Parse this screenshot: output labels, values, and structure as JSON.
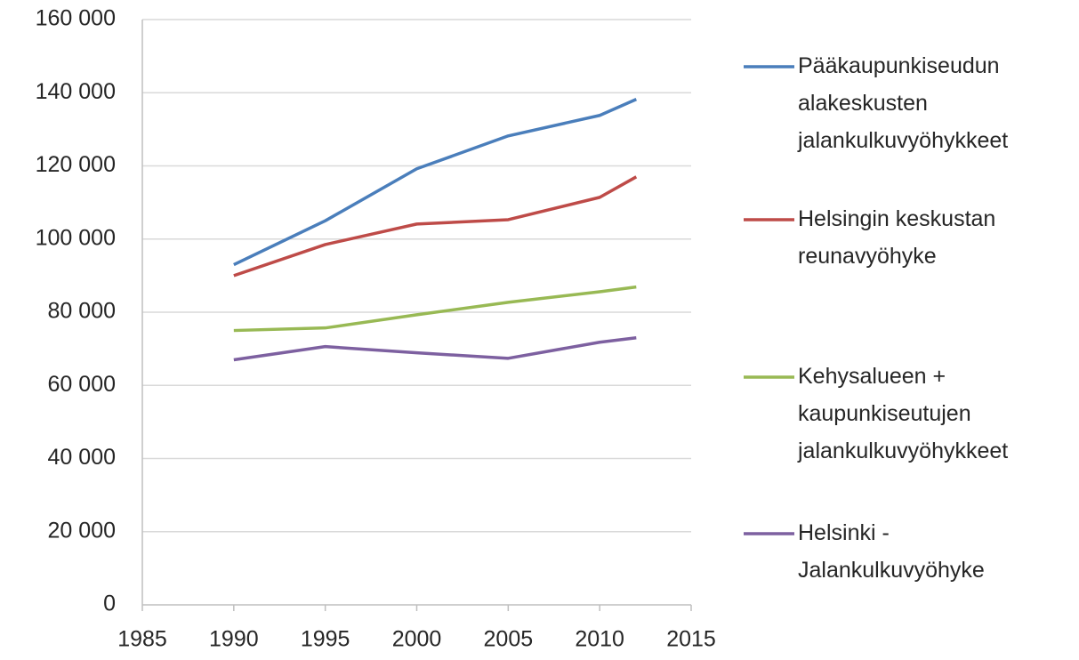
{
  "chart_data": {
    "type": "line",
    "x": [
      1990,
      1995,
      2000,
      2005,
      2010,
      2012
    ],
    "series": [
      {
        "name": "Pääkaupunkiseudun alakeskusten jalankulkuvyöhykkeet",
        "color": "#4a7ebb",
        "values": [
          93000,
          105000,
          119200,
          128200,
          133800,
          138200
        ]
      },
      {
        "name": "Helsingin keskustan reunavyöhyke",
        "color": "#be4b48",
        "values": [
          90000,
          98500,
          104100,
          105300,
          111400,
          117000
        ]
      },
      {
        "name": "Kehysalueen + kaupunkiseutujen jalankulkuvyöhykkeet",
        "color": "#98b954",
        "values": [
          75000,
          75700,
          79300,
          82700,
          85600,
          86900
        ]
      },
      {
        "name": "Helsinki - Jalankulkuvyöhyke",
        "color": "#7d60a0",
        "values": [
          67000,
          70600,
          68900,
          67400,
          71800,
          73000
        ]
      }
    ],
    "xlim": [
      1985,
      2015
    ],
    "xticks": [
      1985,
      1990,
      1995,
      2000,
      2005,
      2010,
      2015
    ],
    "ylim": [
      0,
      160000
    ],
    "yticks": [
      0,
      {
        "value": 20000,
        "label": "20 000"
      },
      {
        "value": 40000,
        "label": "40 000"
      },
      {
        "value": 60000,
        "label": "60 000"
      },
      {
        "value": 80000,
        "label": "80 000"
      },
      {
        "value": 100000,
        "label": "100 000"
      },
      {
        "value": 120000,
        "label": "120 000"
      },
      {
        "value": 140000,
        "label": "140 000"
      },
      {
        "value": 160000,
        "label": "160 000"
      }
    ],
    "grid": true,
    "legend": "right"
  }
}
